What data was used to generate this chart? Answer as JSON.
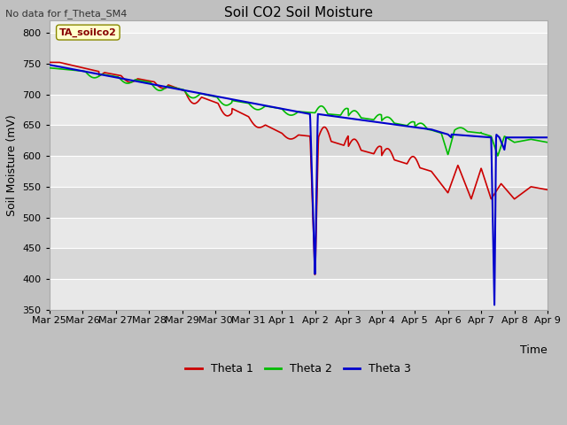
{
  "title": "Soil CO2 Soil Moisture",
  "no_data_text": "No data for f_Theta_SM4",
  "annotation_text": "TA_soilco2",
  "ylabel": "Soil Moisture (mV)",
  "xlabel": "Time",
  "ylim": [
    350,
    820
  ],
  "yticks": [
    350,
    400,
    450,
    500,
    550,
    600,
    650,
    700,
    750,
    800
  ],
  "fig_bg_color": "#c8c8c8",
  "plot_bg_color_light": "#f0f0f0",
  "plot_bg_color_dark": "#d8d8d8",
  "grid_color": "#ffffff",
  "legend_labels": [
    "Theta 1",
    "Theta 2",
    "Theta 3"
  ],
  "legend_colors": [
    "#cc0000",
    "#00bb00",
    "#0000cc"
  ],
  "x_tick_labels": [
    "Mar 25",
    "Mar 26",
    "Mar 27",
    "Mar 28",
    "Mar 29",
    "Mar 30",
    "Mar 31",
    "Apr 1",
    "Apr 2",
    "Apr 3",
    "Apr 4",
    "Apr 5",
    "Apr 6",
    "Apr 7",
    "Apr 8",
    "Apr 9"
  ]
}
